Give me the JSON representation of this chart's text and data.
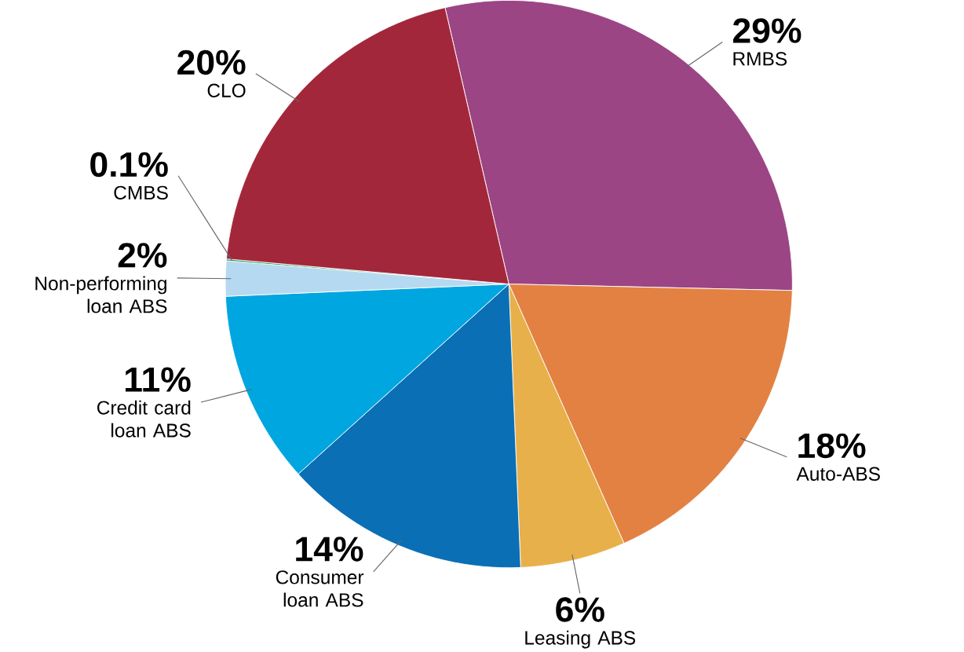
{
  "chart_data": {
    "type": "pie",
    "categories": [
      "RMBS",
      "Auto-ABS",
      "Leasing ABS",
      "Consumer loan ABS",
      "Credit card loan ABS",
      "Non-performing loan ABS",
      "CMBS",
      "CLO"
    ],
    "values": [
      29,
      18,
      6,
      14,
      11,
      2,
      0.1,
      20
    ],
    "value_labels": [
      "29%",
      "18%",
      "6%",
      "14%",
      "11%",
      "2%",
      "0.1%",
      "20%"
    ],
    "colors": [
      "#9b4585",
      "#e38143",
      "#e8b04a",
      "#0a6fb5",
      "#00a6e0",
      "#b5d9f0",
      "#1e9a57",
      "#a3273a"
    ]
  }
}
